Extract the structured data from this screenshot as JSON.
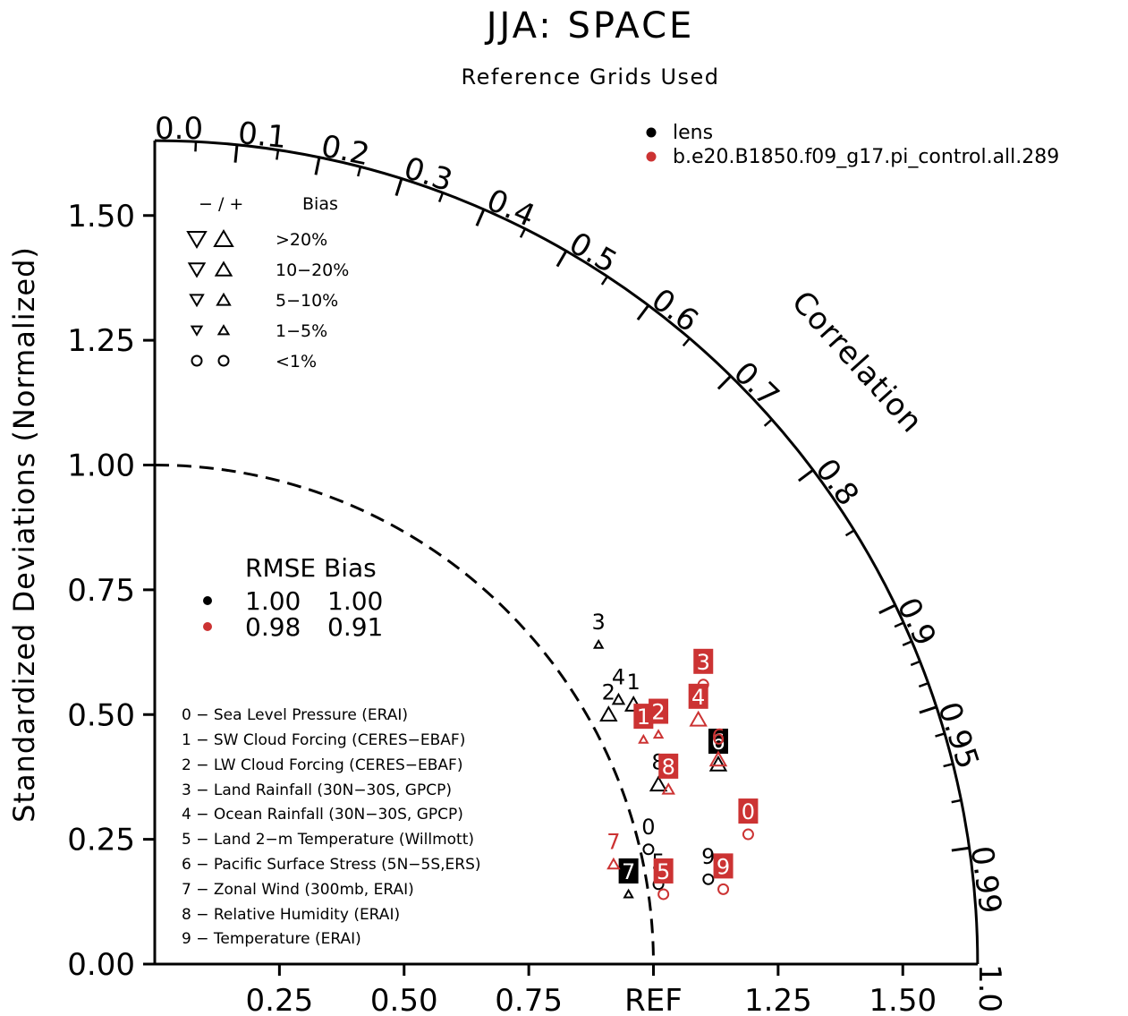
{
  "chart_data": {
    "type": "scatter",
    "subtype": "taylor-diagram",
    "title": "JJA: SPACE",
    "subtitle": "Reference Grids Used",
    "ylabel": "Standardized Deviations (Normalized)",
    "angular_label": "Correlation",
    "ref_label": "REF",
    "x_ticks": [
      "0.25",
      "0.50",
      "0.75",
      "1.25",
      "1.50"
    ],
    "y_ticks": [
      "0.00",
      "0.25",
      "0.50",
      "0.75",
      "1.00",
      "1.25",
      "1.50"
    ],
    "correlation_ticks": [
      "0.0",
      "0.1",
      "0.2",
      "0.3",
      "0.4",
      "0.5",
      "0.6",
      "0.7",
      "0.8",
      "0.9",
      "0.95",
      "0.99",
      "1.0"
    ],
    "radius_max": 1.65,
    "ref_arc_radius": 1.0,
    "cases": [
      {
        "name": "lens",
        "color": "#000000"
      },
      {
        "name": "b.e20.B1850.f09_g17.pi_control.all.289",
        "color": "#cc3333"
      }
    ],
    "bias_key": {
      "header_sign": "− / +",
      "header_label": "Bias",
      "rows": [
        ">20%",
        "10−20%",
        "5−10%",
        "1−5%",
        "<1%"
      ]
    },
    "rmse_table": {
      "header": "RMSE Bias",
      "rows": [
        {
          "rmse": "1.00",
          "bias": "1.00"
        },
        {
          "rmse": "0.98",
          "bias": "0.91"
        }
      ]
    },
    "variables": [
      "0 − Sea Level Pressure (ERAI)",
      "1 − SW Cloud Forcing (CERES−EBAF)",
      "2 − LW Cloud Forcing (CERES−EBAF)",
      "3 − Land Rainfall (30N−30S, GPCP)",
      "4 − Ocean Rainfall (30N−30S, GPCP)",
      "5 − Land 2−m Temperature (Willmott)",
      "6 − Pacific Surface Stress (5N−5S,ERS)",
      "7 − Zonal Wind (300mb, ERAI)",
      "8 − Relative Humidity (ERAI)",
      "9 − Temperature (ERAI)"
    ],
    "points": [
      {
        "case": 0,
        "label": "0",
        "x": 0.99,
        "y": 0.23,
        "marker": "circle",
        "boxed": false
      },
      {
        "case": 0,
        "label": "1",
        "x": 0.96,
        "y": 0.52,
        "marker": "up-lg",
        "boxed": false
      },
      {
        "case": 0,
        "label": "2",
        "x": 0.91,
        "y": 0.5,
        "marker": "up-lg",
        "boxed": false
      },
      {
        "case": 0,
        "label": "3",
        "x": 0.89,
        "y": 0.64,
        "marker": "up-xs",
        "boxed": false
      },
      {
        "case": 0,
        "label": "4",
        "x": 0.93,
        "y": 0.53,
        "marker": "up-sm",
        "boxed": false
      },
      {
        "case": 0,
        "label": "5",
        "x": 1.01,
        "y": 0.16,
        "marker": "circle",
        "boxed": false
      },
      {
        "case": 0,
        "label": "6",
        "x": 1.13,
        "y": 0.4,
        "marker": "up-lg",
        "boxed": true
      },
      {
        "case": 0,
        "label": "7",
        "x": 0.95,
        "y": 0.14,
        "marker": "up-xs",
        "boxed": true
      },
      {
        "case": 0,
        "label": "8",
        "x": 1.01,
        "y": 0.36,
        "marker": "up-lg",
        "boxed": false
      },
      {
        "case": 0,
        "label": "9",
        "x": 1.11,
        "y": 0.17,
        "marker": "circle",
        "boxed": false
      },
      {
        "case": 1,
        "label": "0",
        "x": 1.19,
        "y": 0.26,
        "marker": "circle",
        "boxed": true
      },
      {
        "case": 1,
        "label": "1",
        "x": 0.98,
        "y": 0.45,
        "marker": "up-xs",
        "boxed": true
      },
      {
        "case": 1,
        "label": "2",
        "x": 1.01,
        "y": 0.46,
        "marker": "up-xs",
        "boxed": true
      },
      {
        "case": 1,
        "label": "3",
        "x": 1.1,
        "y": 0.56,
        "marker": "circle",
        "boxed": true
      },
      {
        "case": 1,
        "label": "4",
        "x": 1.09,
        "y": 0.49,
        "marker": "up-lg",
        "boxed": true
      },
      {
        "case": 1,
        "label": "5",
        "x": 1.02,
        "y": 0.14,
        "marker": "circle",
        "boxed": true
      },
      {
        "case": 1,
        "label": "6",
        "x": 1.13,
        "y": 0.41,
        "marker": "up-lg",
        "boxed": false
      },
      {
        "case": 1,
        "label": "7",
        "x": 0.92,
        "y": 0.2,
        "marker": "up-sm",
        "boxed": false
      },
      {
        "case": 1,
        "label": "8",
        "x": 1.03,
        "y": 0.35,
        "marker": "up-sm",
        "boxed": true
      },
      {
        "case": 1,
        "label": "9",
        "x": 1.14,
        "y": 0.15,
        "marker": "circle",
        "boxed": true
      }
    ]
  }
}
